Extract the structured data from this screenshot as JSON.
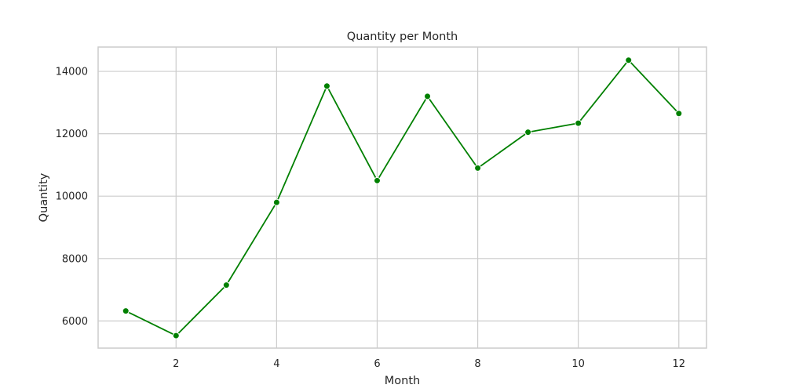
{
  "chart_data": {
    "type": "line",
    "title": "Quantity per Month",
    "xlabel": "Month",
    "ylabel": "Quantity",
    "x": [
      1,
      2,
      3,
      4,
      5,
      6,
      7,
      8,
      9,
      10,
      11,
      12
    ],
    "series": [
      {
        "values": [
          6320,
          5530,
          7150,
          9800,
          13530,
          10500,
          13200,
          10900,
          12050,
          12340,
          14360,
          12650
        ],
        "color": "#008000"
      }
    ],
    "xlim": [
      0.45,
      12.55
    ],
    "ylim": [
      5130,
      14780
    ],
    "xticks": [
      2,
      4,
      6,
      8,
      10,
      12
    ],
    "yticks": [
      6000,
      8000,
      10000,
      12000,
      14000
    ],
    "grid": true,
    "legend": "none"
  }
}
